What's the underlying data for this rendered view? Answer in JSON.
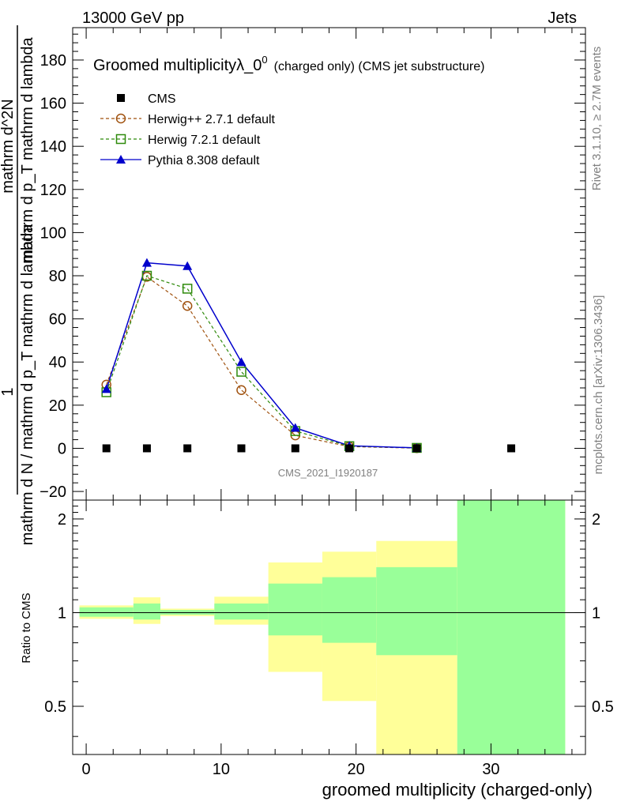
{
  "chart_data": {
    "type": "line",
    "header_left": "13000 GeV pp",
    "header_right": "Jets",
    "title_main": "Groomed multiplicity",
    "title_lambda": "λ_0",
    "title_sup": "0",
    "title_suffix": "(charged only) (CMS jet substructure)",
    "ylabel_numerator": "1",
    "ylabel_denominator": "mathrm d N / mathrm d p_T mathrm d lambda",
    "ylabel_inner_top": "mathrm d^2N",
    "ylabel_inner_bottom": "mathrm d p_T mathrm d lambda",
    "xlabel": "groomed multiplicity (charged-only)",
    "ratio_ylabel": "Ratio to CMS",
    "right_label_top": "Rivet 3.1.10, ≥ 2.7M events",
    "right_label_bottom": "mcplots.cern.ch [arXiv:1306.3436]",
    "watermark": "CMS_2021_I1920187",
    "xlim": [
      -1,
      37
    ],
    "ylim": [
      -24,
      195
    ],
    "ratio_ylim": [
      0.35,
      2.3
    ],
    "x_ticks": [
      "0",
      "10",
      "20",
      "30"
    ],
    "y_ticks": [
      "−20",
      "0",
      "20",
      "40",
      "60",
      "80",
      "100",
      "120",
      "140",
      "160",
      "180"
    ],
    "ratio_ticks": [
      "0.5",
      "1",
      "2"
    ],
    "legend": [
      {
        "name": "CMS",
        "marker": "square-filled",
        "color": "#000000"
      },
      {
        "name": "Herwig++ 2.7.1 default",
        "marker": "circle-open",
        "color": "#a0520f"
      },
      {
        "name": "Herwig 7.2.1 default",
        "marker": "square-open",
        "color": "#2e8a0b"
      },
      {
        "name": "Pythia 8.308 default",
        "marker": "triangle-filled",
        "color": "#0000cc"
      }
    ],
    "cms": {
      "x": [
        1.5,
        4.5,
        7.5,
        11.5,
        15.5,
        19.5,
        24.5,
        31.5
      ],
      "y": [
        0,
        0,
        0,
        0,
        0,
        0,
        0,
        0
      ]
    },
    "series": [
      {
        "name": "Herwig++ 2.7.1 default",
        "color": "#a0520f",
        "x": [
          1.5,
          4.5,
          7.5,
          11.5,
          15.5,
          19.5,
          24.5
        ],
        "y": [
          29.5,
          79.5,
          66,
          27,
          6,
          0.8,
          0.1
        ]
      },
      {
        "name": "Herwig 7.2.1 default",
        "color": "#2e8a0b",
        "x": [
          1.5,
          4.5,
          7.5,
          11.5,
          15.5,
          19.5,
          24.5
        ],
        "y": [
          26,
          80,
          74,
          35.5,
          8,
          1,
          0.2
        ]
      },
      {
        "name": "Pythia 8.308 default",
        "color": "#0000cc",
        "x": [
          1.5,
          4.5,
          7.5,
          11.5,
          15.5,
          19.5,
          24.5
        ],
        "y": [
          27.5,
          86,
          84.5,
          40,
          9.5,
          1.2,
          0.2
        ]
      }
    ],
    "ratio_bands": [
      {
        "x0": -0.5,
        "x1": 3.5,
        "yellow": [
          0.955,
          1.055
        ],
        "green": [
          0.97,
          1.04
        ]
      },
      {
        "x0": 3.5,
        "x1": 5.5,
        "yellow": [
          0.92,
          1.12
        ],
        "green": [
          0.95,
          1.07
        ]
      },
      {
        "x0": 5.5,
        "x1": 9.5,
        "yellow": [
          0.975,
          1.03
        ],
        "green": [
          0.985,
          1.02
        ]
      },
      {
        "x0": 9.5,
        "x1": 13.5,
        "yellow": [
          0.915,
          1.125
        ],
        "green": [
          0.95,
          1.07
        ]
      },
      {
        "x0": 13.5,
        "x1": 17.5,
        "yellow": [
          0.645,
          1.45
        ],
        "green": [
          0.845,
          1.24
        ]
      },
      {
        "x0": 17.5,
        "x1": 21.5,
        "yellow": [
          0.52,
          1.57
        ],
        "green": [
          0.8,
          1.3
        ]
      },
      {
        "x0": 21.5,
        "x1": 27.5,
        "yellow": [
          0.35,
          1.7
        ],
        "green": [
          0.73,
          1.4
        ]
      },
      {
        "x0": 27.5,
        "x1": 35.5,
        "yellow": [
          0.35,
          2.3
        ],
        "green": [
          0.35,
          2.3
        ]
      }
    ],
    "colors": {
      "band_yellow": "#ffff99",
      "band_green": "#99ff99"
    }
  }
}
